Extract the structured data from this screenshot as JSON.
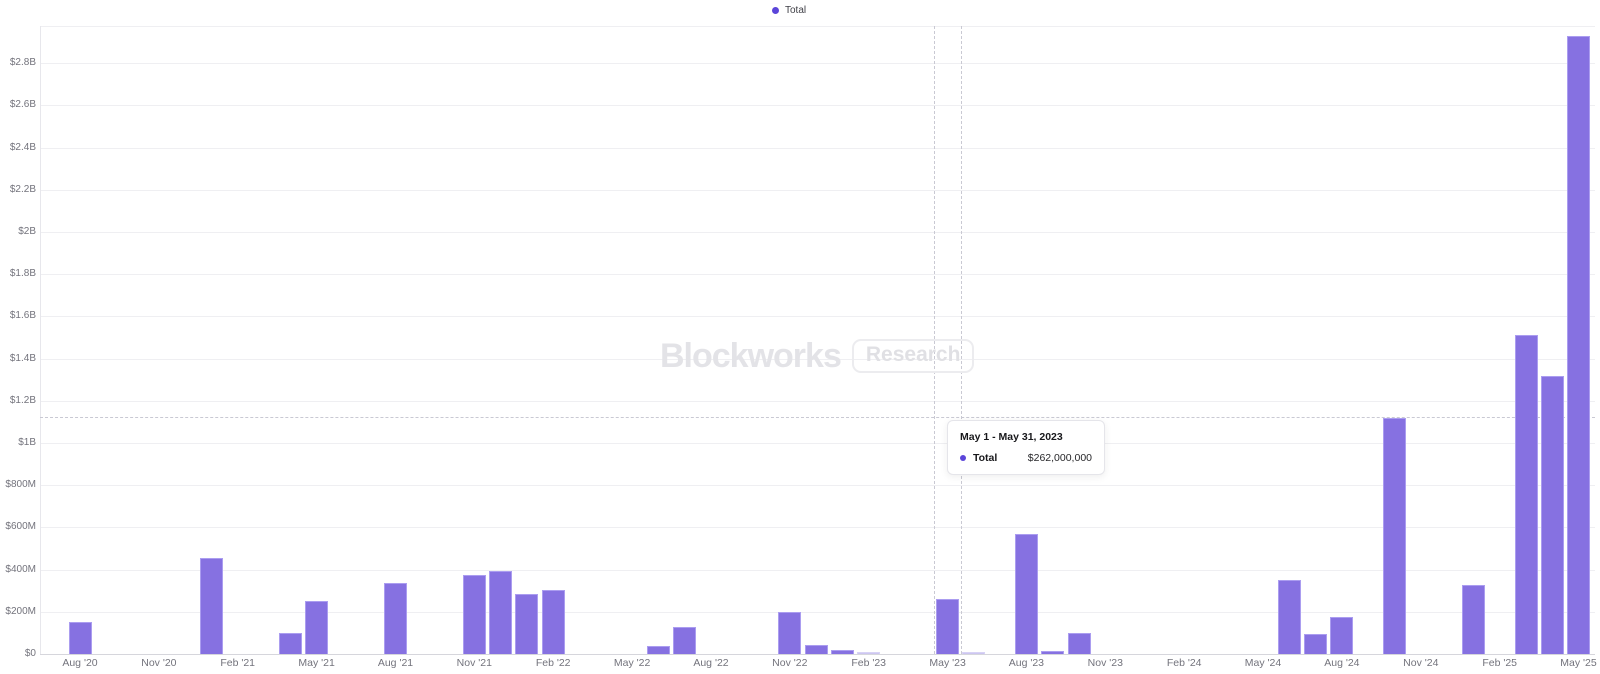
{
  "legend": {
    "label": "Total",
    "dot_color": "#5b45d9"
  },
  "watermark": {
    "brand": "Blockworks",
    "pill": "Research"
  },
  "tooltip": {
    "title": "May 1 - May 31, 2023",
    "series_label": "Total",
    "value": "$262,000,000",
    "dot_color": "#5b45d9"
  },
  "chart_data": {
    "type": "bar",
    "title": "",
    "xlabel": "",
    "ylabel": "",
    "unit": "USD millions",
    "grid": true,
    "legend_position": "top-center",
    "ylim": [
      0,
      2975
    ],
    "bar_color": "#8671e1",
    "bar_border_color": "#ab9df0",
    "light_bar_color": "#cdc6f1",
    "categories": [
      "Aug '20",
      "Sep '20",
      "Oct '20",
      "Nov '20",
      "Dec '20",
      "Jan '21",
      "Feb '21",
      "Mar '21",
      "Apr '21",
      "May '21",
      "Jun '21",
      "Jul '21",
      "Aug '21",
      "Sep '21",
      "Oct '21",
      "Nov '21",
      "Dec '21",
      "Jan '22",
      "Feb '22",
      "Mar '22",
      "Apr '22",
      "May '22",
      "Jun '22",
      "Jul '22",
      "Aug '22",
      "Sep '22",
      "Oct '22",
      "Nov '22",
      "Dec '22",
      "Jan '23",
      "Feb '23",
      "Mar '23",
      "Apr '23",
      "May '23",
      "Jun '23",
      "Jul '23",
      "Aug '23",
      "Sep '23",
      "Oct '23",
      "Nov '23",
      "Dec '23",
      "Jan '24",
      "Feb '24",
      "Mar '24",
      "Apr '24",
      "May '24",
      "Jun '24",
      "Jul '24",
      "Aug '24",
      "Sep '24",
      "Oct '24",
      "Nov '24",
      "Dec '24",
      "Jan '25",
      "Feb '25",
      "Mar '25",
      "Apr '25",
      "May '25"
    ],
    "values": [
      150,
      0,
      0,
      0,
      0,
      455,
      0,
      0,
      100,
      250,
      0,
      0,
      335,
      0,
      0,
      375,
      395,
      285,
      305,
      0,
      0,
      0,
      40,
      130,
      0,
      0,
      0,
      200,
      45,
      20,
      8,
      0,
      0,
      262,
      5,
      0,
      570,
      15,
      100,
      0,
      0,
      0,
      0,
      0,
      0,
      0,
      350,
      95,
      175,
      0,
      1120,
      0,
      0,
      325,
      0,
      1510,
      1320,
      2930
    ],
    "x_tick_labels": [
      "Aug '20",
      "Nov '20",
      "Feb '21",
      "May '21",
      "Aug '21",
      "Nov '21",
      "Feb '22",
      "May '22",
      "Aug '22",
      "Nov '22",
      "Feb '23",
      "May '23",
      "Aug '23",
      "Nov '23",
      "Feb '24",
      "May '24",
      "Aug '24",
      "Nov '24",
      "Feb '25",
      "May '25"
    ],
    "y_ticks": [
      {
        "value": 0,
        "label": "$0"
      },
      {
        "value": 200,
        "label": "$200M"
      },
      {
        "value": 400,
        "label": "$400M"
      },
      {
        "value": 600,
        "label": "$600M"
      },
      {
        "value": 800,
        "label": "$800M"
      },
      {
        "value": 1000,
        "label": "$1B"
      },
      {
        "value": 1200,
        "label": "$1.2B"
      },
      {
        "value": 1400,
        "label": "$1.4B"
      },
      {
        "value": 1600,
        "label": "$1.6B"
      },
      {
        "value": 1800,
        "label": "$1.8B"
      },
      {
        "value": 2000,
        "label": "$2B"
      },
      {
        "value": 2200,
        "label": "$2.2B"
      },
      {
        "value": 2400,
        "label": "$2.4B"
      },
      {
        "value": 2600,
        "label": "$2.6B"
      },
      {
        "value": 2800,
        "label": "$2.8B"
      }
    ],
    "crosshair": {
      "hovered_band": "May '23",
      "y_value_musd": 1123
    }
  }
}
